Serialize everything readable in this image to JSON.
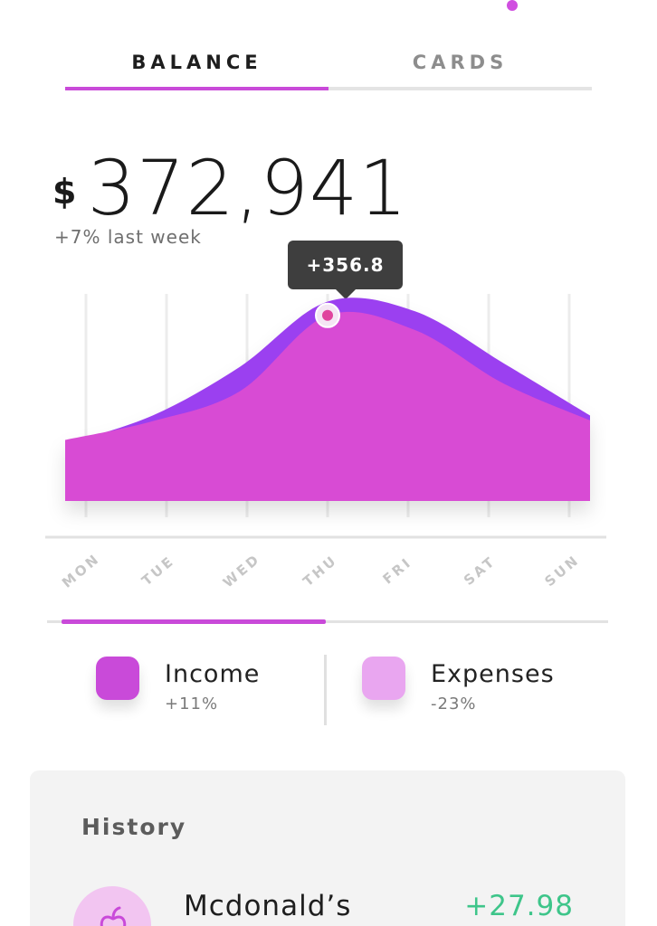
{
  "tabs": [
    {
      "label": "BALANCE",
      "active": true
    },
    {
      "label": "CARDS",
      "active": false
    }
  ],
  "balance": {
    "currency": "$",
    "amount": "372,941",
    "change": "+7% last week"
  },
  "chart_data": {
    "type": "area",
    "categories": [
      "MON",
      "TUE",
      "WED",
      "THU",
      "FRI",
      "SAT",
      "SUN"
    ],
    "tooltip": "+356.8",
    "highlight_index": 3,
    "series": [
      {
        "values": [
          70,
          105,
          165,
          245,
          233,
          170,
          105
        ],
        "color": "#9b3ff0"
      },
      {
        "values": [
          75,
          98,
          135,
          228,
          210,
          145,
          99
        ],
        "color": "#d84bd4"
      }
    ],
    "ylim": [
      0,
      260
    ],
    "grid": true
  },
  "legend": [
    {
      "label": "Income",
      "change": "+11%",
      "color": "#c94ad9"
    },
    {
      "label": "Expenses",
      "change": "-23%",
      "color": "#e9a6f0"
    }
  ],
  "history": {
    "title": "History",
    "items": [
      {
        "merchant": "Mcdonald’s",
        "amount": "+27.98",
        "icon": "food-icon"
      }
    ]
  },
  "colors": {
    "accent": "#c94ad9",
    "positive": "#3ec58a",
    "tooltip_bg": "#3e3e3e"
  }
}
